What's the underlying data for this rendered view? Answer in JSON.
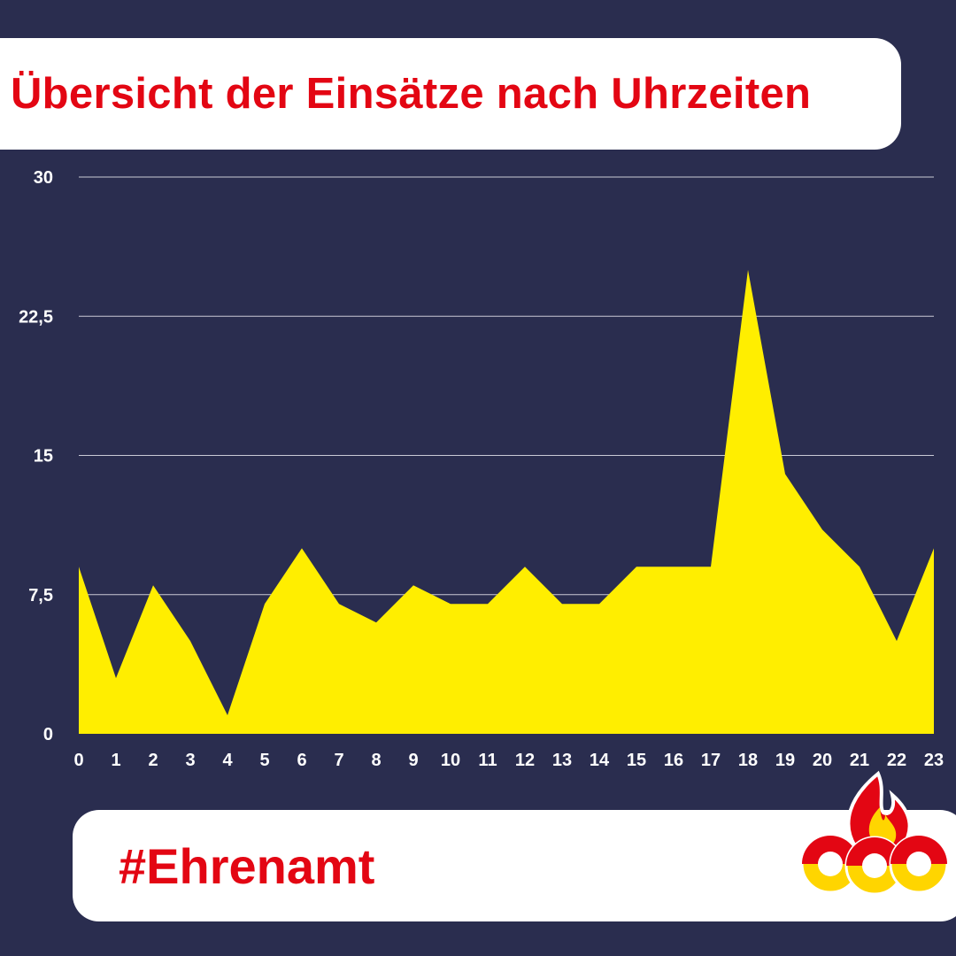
{
  "header": {
    "title": "Übersicht der Einsätze nach Uhrzeiten"
  },
  "footer": {
    "hashtag": "#Ehrenamt"
  },
  "logo": {
    "icon": "fire-department-flame-rings-icon"
  },
  "colors": {
    "background": "#2a2d4f",
    "area_fill": "#ffee00",
    "title_red": "#e30613",
    "grid": "#c9cad6",
    "text": "#ffffff",
    "logo_yellow": "#ffd500"
  },
  "chart_data": {
    "type": "area",
    "title": "Übersicht der Einsätze nach Uhrzeiten",
    "xlabel": "",
    "ylabel": "",
    "x": [
      0,
      1,
      2,
      3,
      4,
      5,
      6,
      7,
      8,
      9,
      10,
      11,
      12,
      13,
      14,
      15,
      16,
      17,
      18,
      19,
      20,
      21,
      22,
      23
    ],
    "y_tick_labels": [
      "0",
      "7,5",
      "15",
      "22,5",
      "30"
    ],
    "y_ticks": [
      0,
      7.5,
      15,
      22.5,
      30
    ],
    "ylim": [
      0,
      30
    ],
    "grid": true,
    "legend": false,
    "series": [
      {
        "values": [
          9,
          3,
          8,
          5,
          1,
          7,
          10,
          7,
          6,
          8,
          7,
          7,
          9,
          7,
          7,
          9,
          9,
          9,
          25,
          14,
          11,
          9,
          5,
          10
        ]
      }
    ]
  }
}
